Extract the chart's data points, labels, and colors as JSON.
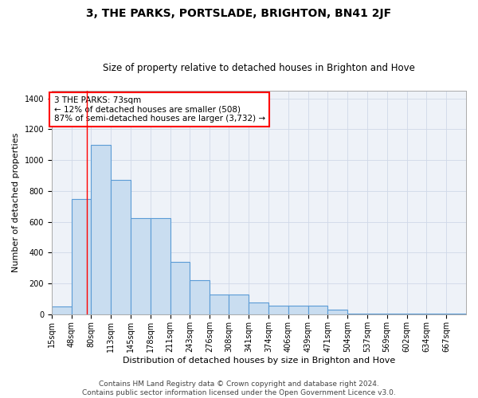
{
  "title": "3, THE PARKS, PORTSLADE, BRIGHTON, BN41 2JF",
  "subtitle": "Size of property relative to detached houses in Brighton and Hove",
  "xlabel": "Distribution of detached houses by size in Brighton and Hove",
  "ylabel": "Number of detached properties",
  "footer1": "Contains HM Land Registry data © Crown copyright and database right 2024.",
  "footer2": "Contains public sector information licensed under the Open Government Licence v3.0.",
  "annotation_line1": "3 THE PARKS: 73sqm",
  "annotation_line2": "← 12% of detached houses are smaller (508)",
  "annotation_line3": "87% of semi-detached houses are larger (3,732) →",
  "property_line_x": 73,
  "bar_edge_color": "#5b9bd5",
  "bar_face_color": "#c9ddf0",
  "bar_linewidth": 0.8,
  "grid_color": "#d0d8e8",
  "background_color": "#eef2f8",
  "categories": [
    "15sqm",
    "48sqm",
    "80sqm",
    "113sqm",
    "145sqm",
    "178sqm",
    "211sqm",
    "243sqm",
    "276sqm",
    "308sqm",
    "341sqm",
    "374sqm",
    "406sqm",
    "439sqm",
    "471sqm",
    "504sqm",
    "537sqm",
    "569sqm",
    "602sqm",
    "634sqm",
    "667sqm"
  ],
  "bin_edges": [
    15,
    48,
    80,
    113,
    145,
    178,
    211,
    243,
    276,
    308,
    341,
    374,
    406,
    439,
    471,
    504,
    537,
    569,
    602,
    634,
    667,
    700
  ],
  "values": [
    50,
    750,
    1100,
    870,
    625,
    625,
    340,
    220,
    130,
    130,
    75,
    55,
    55,
    55,
    30,
    5,
    5,
    5,
    5,
    5,
    5
  ],
  "ylim": [
    0,
    1450
  ],
  "yticks": [
    0,
    200,
    400,
    600,
    800,
    1000,
    1200,
    1400
  ],
  "title_fontsize": 10,
  "subtitle_fontsize": 8.5,
  "axis_label_fontsize": 8,
  "tick_fontsize": 7,
  "annotation_fontsize": 7.5,
  "footer_fontsize": 6.5
}
